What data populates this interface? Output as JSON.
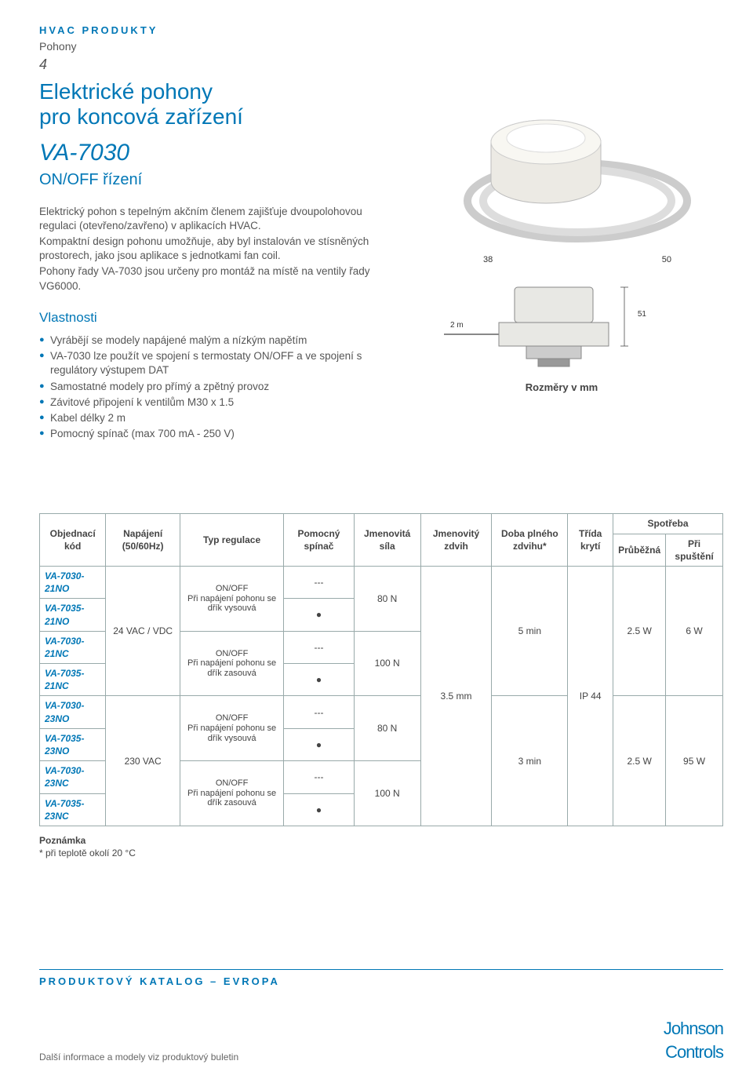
{
  "header": {
    "category": "HVAC PRODUKTY",
    "subcategory": "Pohony",
    "page": "4",
    "title_line1": "Elektrické pohony",
    "title_line2": "pro koncová zařízení",
    "model": "VA-7030",
    "subtitle": "ON/OFF řízení"
  },
  "intro": {
    "p1": "Elektrický pohon s tepelným akčním členem zajišťuje dvoupolohovou regulaci (otevřeno/zavřeno) v aplikacích HVAC.",
    "p2": "Kompaktní design pohonu umožňuje, aby byl instalován ve stísněných prostorech, jako jsou aplikace s jednotkami fan coil.",
    "p3": "Pohony řady VA-7030 jsou určeny pro montáž na místě na ventily řady VG6000."
  },
  "features": {
    "heading": "Vlastnosti",
    "items": [
      "Vyrábějí se modely napájené malým a nízkým napětím",
      "VA-7030 lze použít ve spojení s termostaty ON/OFF a ve spojení s regulátory výstupem DAT",
      "Samostatné modely pro přímý a zpětný provoz",
      "Závitové připojení k ventilům M30 x 1.5",
      "Kabel délky 2 m",
      "Pomocný spínač (max 700 mA - 250 V)"
    ]
  },
  "dimensions": {
    "d38": "38",
    "d50": "50",
    "d51": "51",
    "d2m": "2 m",
    "caption": "Rozměry v mm"
  },
  "table": {
    "headers": {
      "code": "Objednací kód",
      "supply": "Napájení (50/60Hz)",
      "reg": "Typ regulace",
      "aux": "Pomocný spínač",
      "force": "Jmenovitá síla",
      "stroke": "Jmenovitý zdvih",
      "full_time": "Doba plného zdvihu*",
      "ip": "Třída krytí",
      "consumption": "Spotřeba",
      "cons_cont": "Průběžná",
      "cons_start": "Při spuštění"
    },
    "rows": [
      {
        "code": "VA-7030-21NO",
        "aux": "---"
      },
      {
        "code": "VA-7035-21NO",
        "aux": "●"
      },
      {
        "code": "VA-7030-21NC",
        "aux": "---"
      },
      {
        "code": "VA-7035-21NC",
        "aux": "●"
      },
      {
        "code": "VA-7030-23NO",
        "aux": "---"
      },
      {
        "code": "VA-7035-23NO",
        "aux": "●"
      },
      {
        "code": "VA-7030-23NC",
        "aux": "---"
      },
      {
        "code": "VA-7035-23NC",
        "aux": "●"
      }
    ],
    "supply_24": "24 VAC / VDC",
    "supply_230": "230 VAC",
    "reg_no": "ON/OFF\nPři napájení pohonu se dřík vysouvá",
    "reg_nc": "ON/OFF\nPři napájení pohonu se dřík zasouvá",
    "force_80": "80 N",
    "force_100": "100 N",
    "stroke_val": "3.5 mm",
    "time_5": "5 min",
    "time_3": "3 min",
    "ip_val": "IP 44",
    "cons_cont_val": "2.5 W",
    "cons_start_6": "6 W",
    "cons_start_95": "95 W"
  },
  "note": {
    "label": "Poznámka",
    "text": "* při teplotě okolí 20 °C"
  },
  "footer": {
    "catalog": "PRODUKTOVÝ KATALOG – EVROPA",
    "more": "Další informace a modely viz produktový buletin",
    "logo1": "Johnson",
    "logo2": "Controls"
  },
  "colors": {
    "brand": "#0077b6",
    "text": "#555555",
    "border": "#99aaaa"
  }
}
